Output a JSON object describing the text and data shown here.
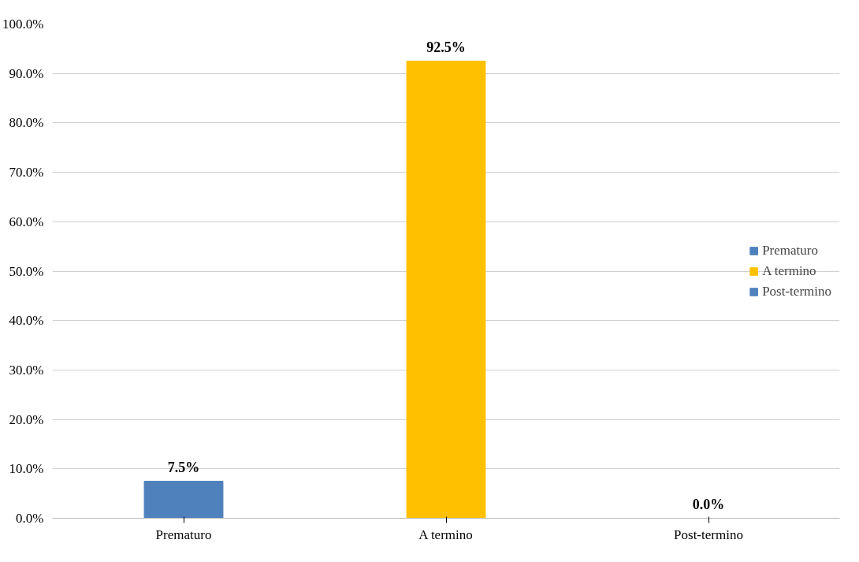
{
  "chart_data": {
    "type": "bar",
    "stacked": true,
    "categories": [
      "Prematuro",
      "A termino",
      "Post-termino"
    ],
    "series": [
      {
        "name": "Prematuro",
        "color": "#4f81bd",
        "values": [
          7.5,
          null,
          null
        ],
        "value_labels": [
          "7.5%",
          null,
          null
        ]
      },
      {
        "name": "A termino",
        "color": "#ffc000",
        "values": [
          null,
          92.5,
          null
        ],
        "value_labels": [
          null,
          "92.5%",
          null
        ]
      },
      {
        "name": "Post-termino",
        "color": "#4f81bd",
        "values": [
          null,
          null,
          0.0
        ],
        "value_labels": [
          null,
          null,
          "0.0%"
        ]
      }
    ],
    "ylim": [
      0,
      100
    ],
    "yticks": [
      {
        "value": 0,
        "label": "0.0%"
      },
      {
        "value": 10,
        "label": "10.0%"
      },
      {
        "value": 20,
        "label": "20.0%"
      },
      {
        "value": 30,
        "label": "30.0%"
      },
      {
        "value": 40,
        "label": "40.0%"
      },
      {
        "value": 50,
        "label": "50.0%"
      },
      {
        "value": 60,
        "label": "60.0%"
      },
      {
        "value": 70,
        "label": "70.0%"
      },
      {
        "value": 80,
        "label": "80.0%"
      },
      {
        "value": 90,
        "label": "90.0%"
      },
      {
        "value": 100,
        "label": "100.0%"
      }
    ],
    "grid": "y",
    "legend": "right"
  }
}
